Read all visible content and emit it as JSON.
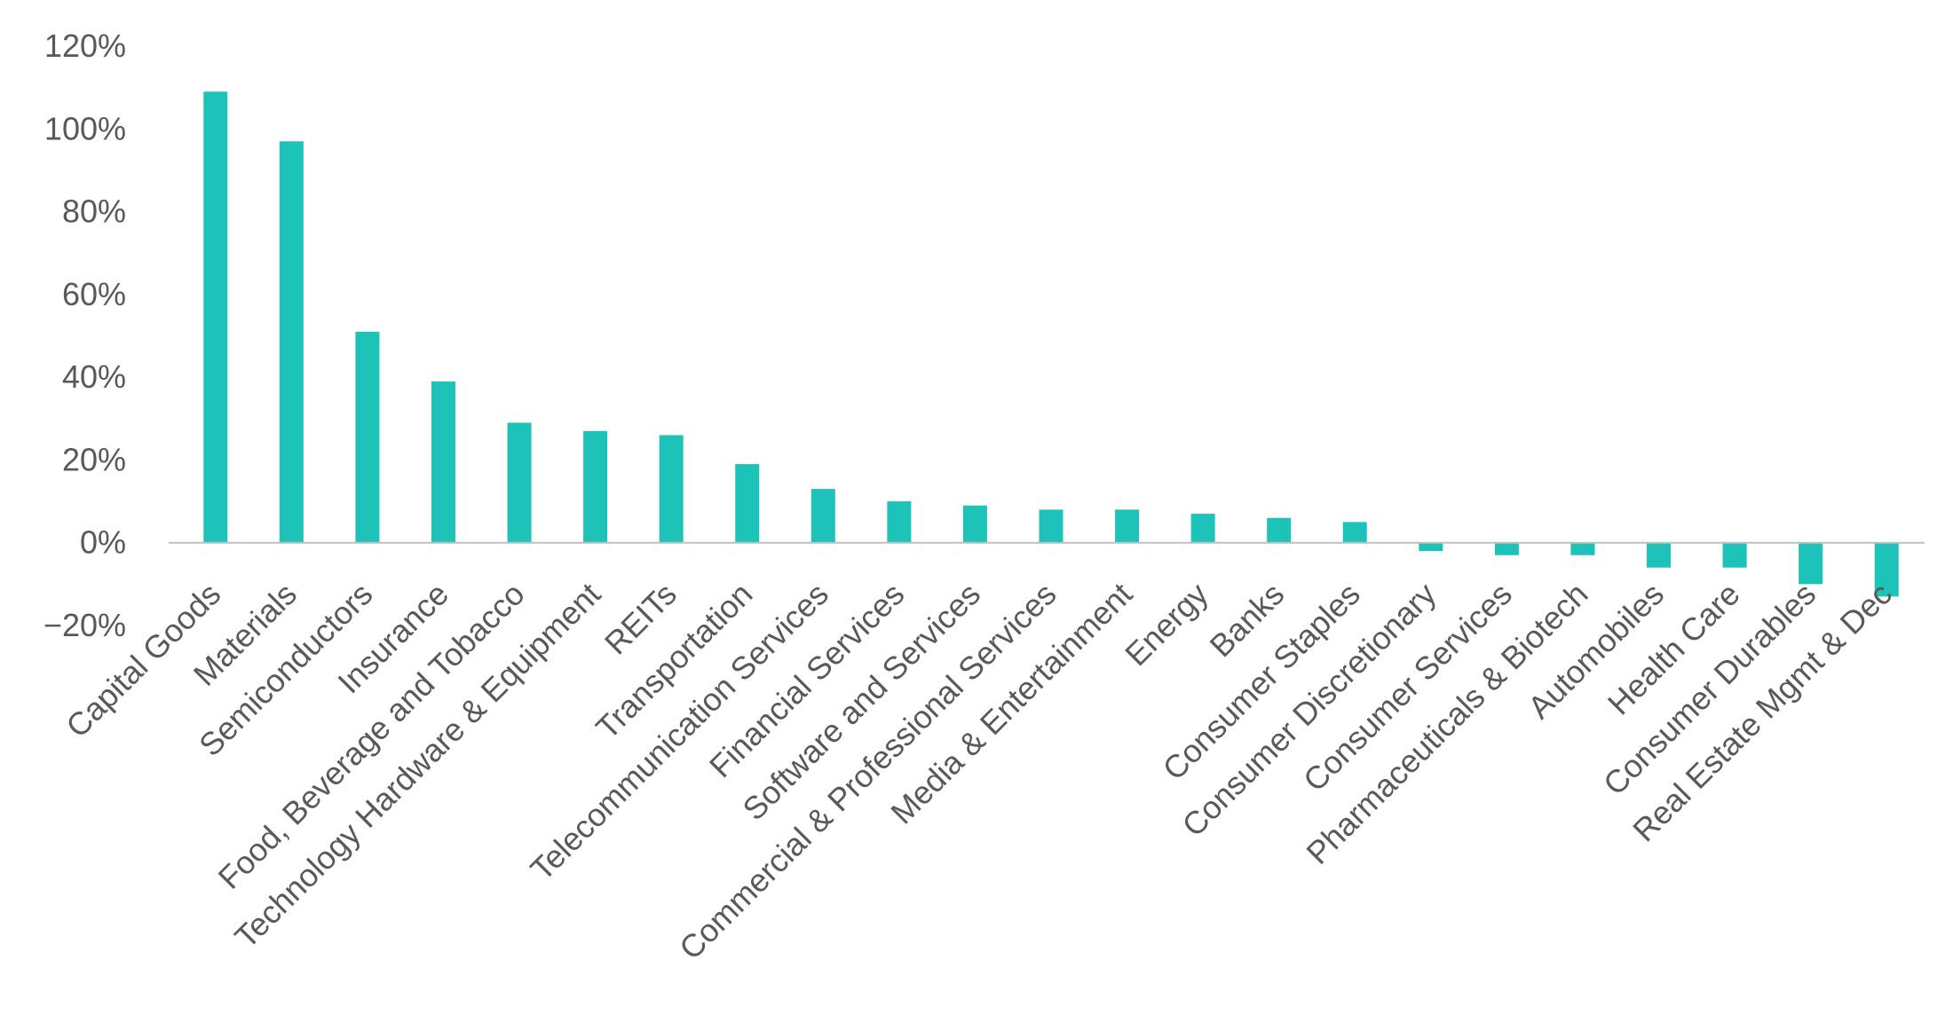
{
  "chart_data": {
    "type": "bar",
    "title": "",
    "xlabel": "",
    "ylabel": "",
    "ylim": [
      -20,
      120
    ],
    "yticks": [
      -20,
      0,
      20,
      40,
      60,
      80,
      100,
      120
    ],
    "tick_suffix": "%",
    "grid": false,
    "legend": "none",
    "bar_color": "#1DC2B8",
    "axis_color": "#BFBFBF",
    "categories": [
      "Capital Goods",
      "Materials",
      "Semiconductors",
      "Insurance",
      "Food, Beverage and Tobacco",
      "Technology Hardware & Equipment",
      "REITs",
      "Transportation",
      "Telecommunication Services",
      "Financial Services",
      "Software and Services",
      "Commercial & Professional Services",
      "Media & Entertainment",
      "Energy",
      "Banks",
      "Consumer Staples",
      "Consumer Discretionary",
      "Consumer Services",
      "Pharmaceuticals & Biotech",
      "Automobiles",
      "Health Care",
      "Consumer Durables",
      "Real Estate Mgmt & Dec"
    ],
    "values": [
      109,
      97,
      51,
      39,
      29,
      27,
      26,
      19,
      13,
      10,
      9,
      8,
      8,
      7,
      6,
      5,
      -2,
      -3,
      -3,
      -6,
      -6,
      -10,
      -13
    ]
  }
}
